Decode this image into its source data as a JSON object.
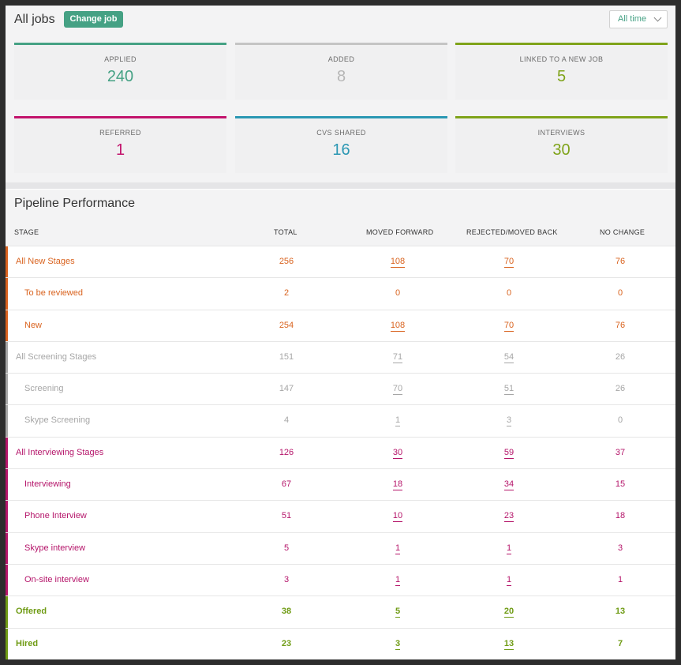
{
  "header": {
    "title": "All jobs",
    "change_job_label": "Change job",
    "time_filter": "All time"
  },
  "colors": {
    "teal": "#45a184",
    "grey": "#b6b6b6",
    "green": "#7fa31a",
    "magenta": "#c2136c",
    "blue": "#2a97b3",
    "orange": "#d9631f",
    "screening_grey": "#9e9e9e"
  },
  "stats": [
    {
      "label": "APPLIED",
      "value": "240",
      "color": "#45a184",
      "bar": "#45a184"
    },
    {
      "label": "ADDED",
      "value": "8",
      "color": "#b6b6b6",
      "bar": "#c4c4c4"
    },
    {
      "label": "LINKED TO A NEW JOB",
      "value": "5",
      "color": "#7fa31a",
      "bar": "#7fa31a"
    },
    {
      "label": "REFERRED",
      "value": "1",
      "color": "#c2136c",
      "bar": "#c2136c"
    },
    {
      "label": "CVS SHARED",
      "value": "16",
      "color": "#2a97b3",
      "bar": "#2a97b3"
    },
    {
      "label": "INTERVIEWS",
      "value": "30",
      "color": "#7fa31a",
      "bar": "#7fa31a"
    }
  ],
  "pipeline": {
    "title": "Pipeline Performance",
    "columns": [
      "STAGE",
      "TOTAL",
      "MOVED FORWARD",
      "REJECTED/MOVED BACK",
      "NO CHANGE"
    ],
    "rows": [
      {
        "stage": "All New Stages",
        "total": "256",
        "forward": "108",
        "back": "70",
        "none": "76",
        "color": "#d9631f",
        "sub": false,
        "link": true
      },
      {
        "stage": "To be reviewed",
        "total": "2",
        "forward": "0",
        "back": "0",
        "none": "0",
        "color": "#d9631f",
        "sub": true,
        "link": false
      },
      {
        "stage": "New",
        "total": "254",
        "forward": "108",
        "back": "70",
        "none": "76",
        "color": "#d9631f",
        "sub": true,
        "link": true
      },
      {
        "stage": "All Screening Stages",
        "total": "151",
        "forward": "71",
        "back": "54",
        "none": "26",
        "color": "#a6a6a6",
        "sub": false,
        "link": true
      },
      {
        "stage": "Screening",
        "total": "147",
        "forward": "70",
        "back": "51",
        "none": "26",
        "color": "#a6a6a6",
        "sub": true,
        "link": true
      },
      {
        "stage": "Skype Screening",
        "total": "4",
        "forward": "1",
        "back": "3",
        "none": "0",
        "color": "#a6a6a6",
        "sub": true,
        "link": true
      },
      {
        "stage": "All Interviewing Stages",
        "total": "126",
        "forward": "30",
        "back": "59",
        "none": "37",
        "color": "#b5156a",
        "sub": false,
        "link": true
      },
      {
        "stage": "Interviewing",
        "total": "67",
        "forward": "18",
        "back": "34",
        "none": "15",
        "color": "#b5156a",
        "sub": true,
        "link": true
      },
      {
        "stage": "Phone Interview",
        "total": "51",
        "forward": "10",
        "back": "23",
        "none": "18",
        "color": "#b5156a",
        "sub": true,
        "link": true
      },
      {
        "stage": "Skype interview",
        "total": "5",
        "forward": "1",
        "back": "1",
        "none": "3",
        "color": "#b5156a",
        "sub": true,
        "link": true
      },
      {
        "stage": "On-site interview",
        "total": "3",
        "forward": "1",
        "back": "1",
        "none": "1",
        "color": "#b5156a",
        "sub": true,
        "link": true
      },
      {
        "stage": "Offered",
        "total": "38",
        "forward": "5",
        "back": "20",
        "none": "13",
        "color": "#6f9b14",
        "sub": false,
        "link": true,
        "bold": true
      },
      {
        "stage": "Hired",
        "total": "23",
        "forward": "3",
        "back": "13",
        "none": "7",
        "color": "#6f9b14",
        "sub": false,
        "link": true,
        "bold": true
      }
    ]
  }
}
